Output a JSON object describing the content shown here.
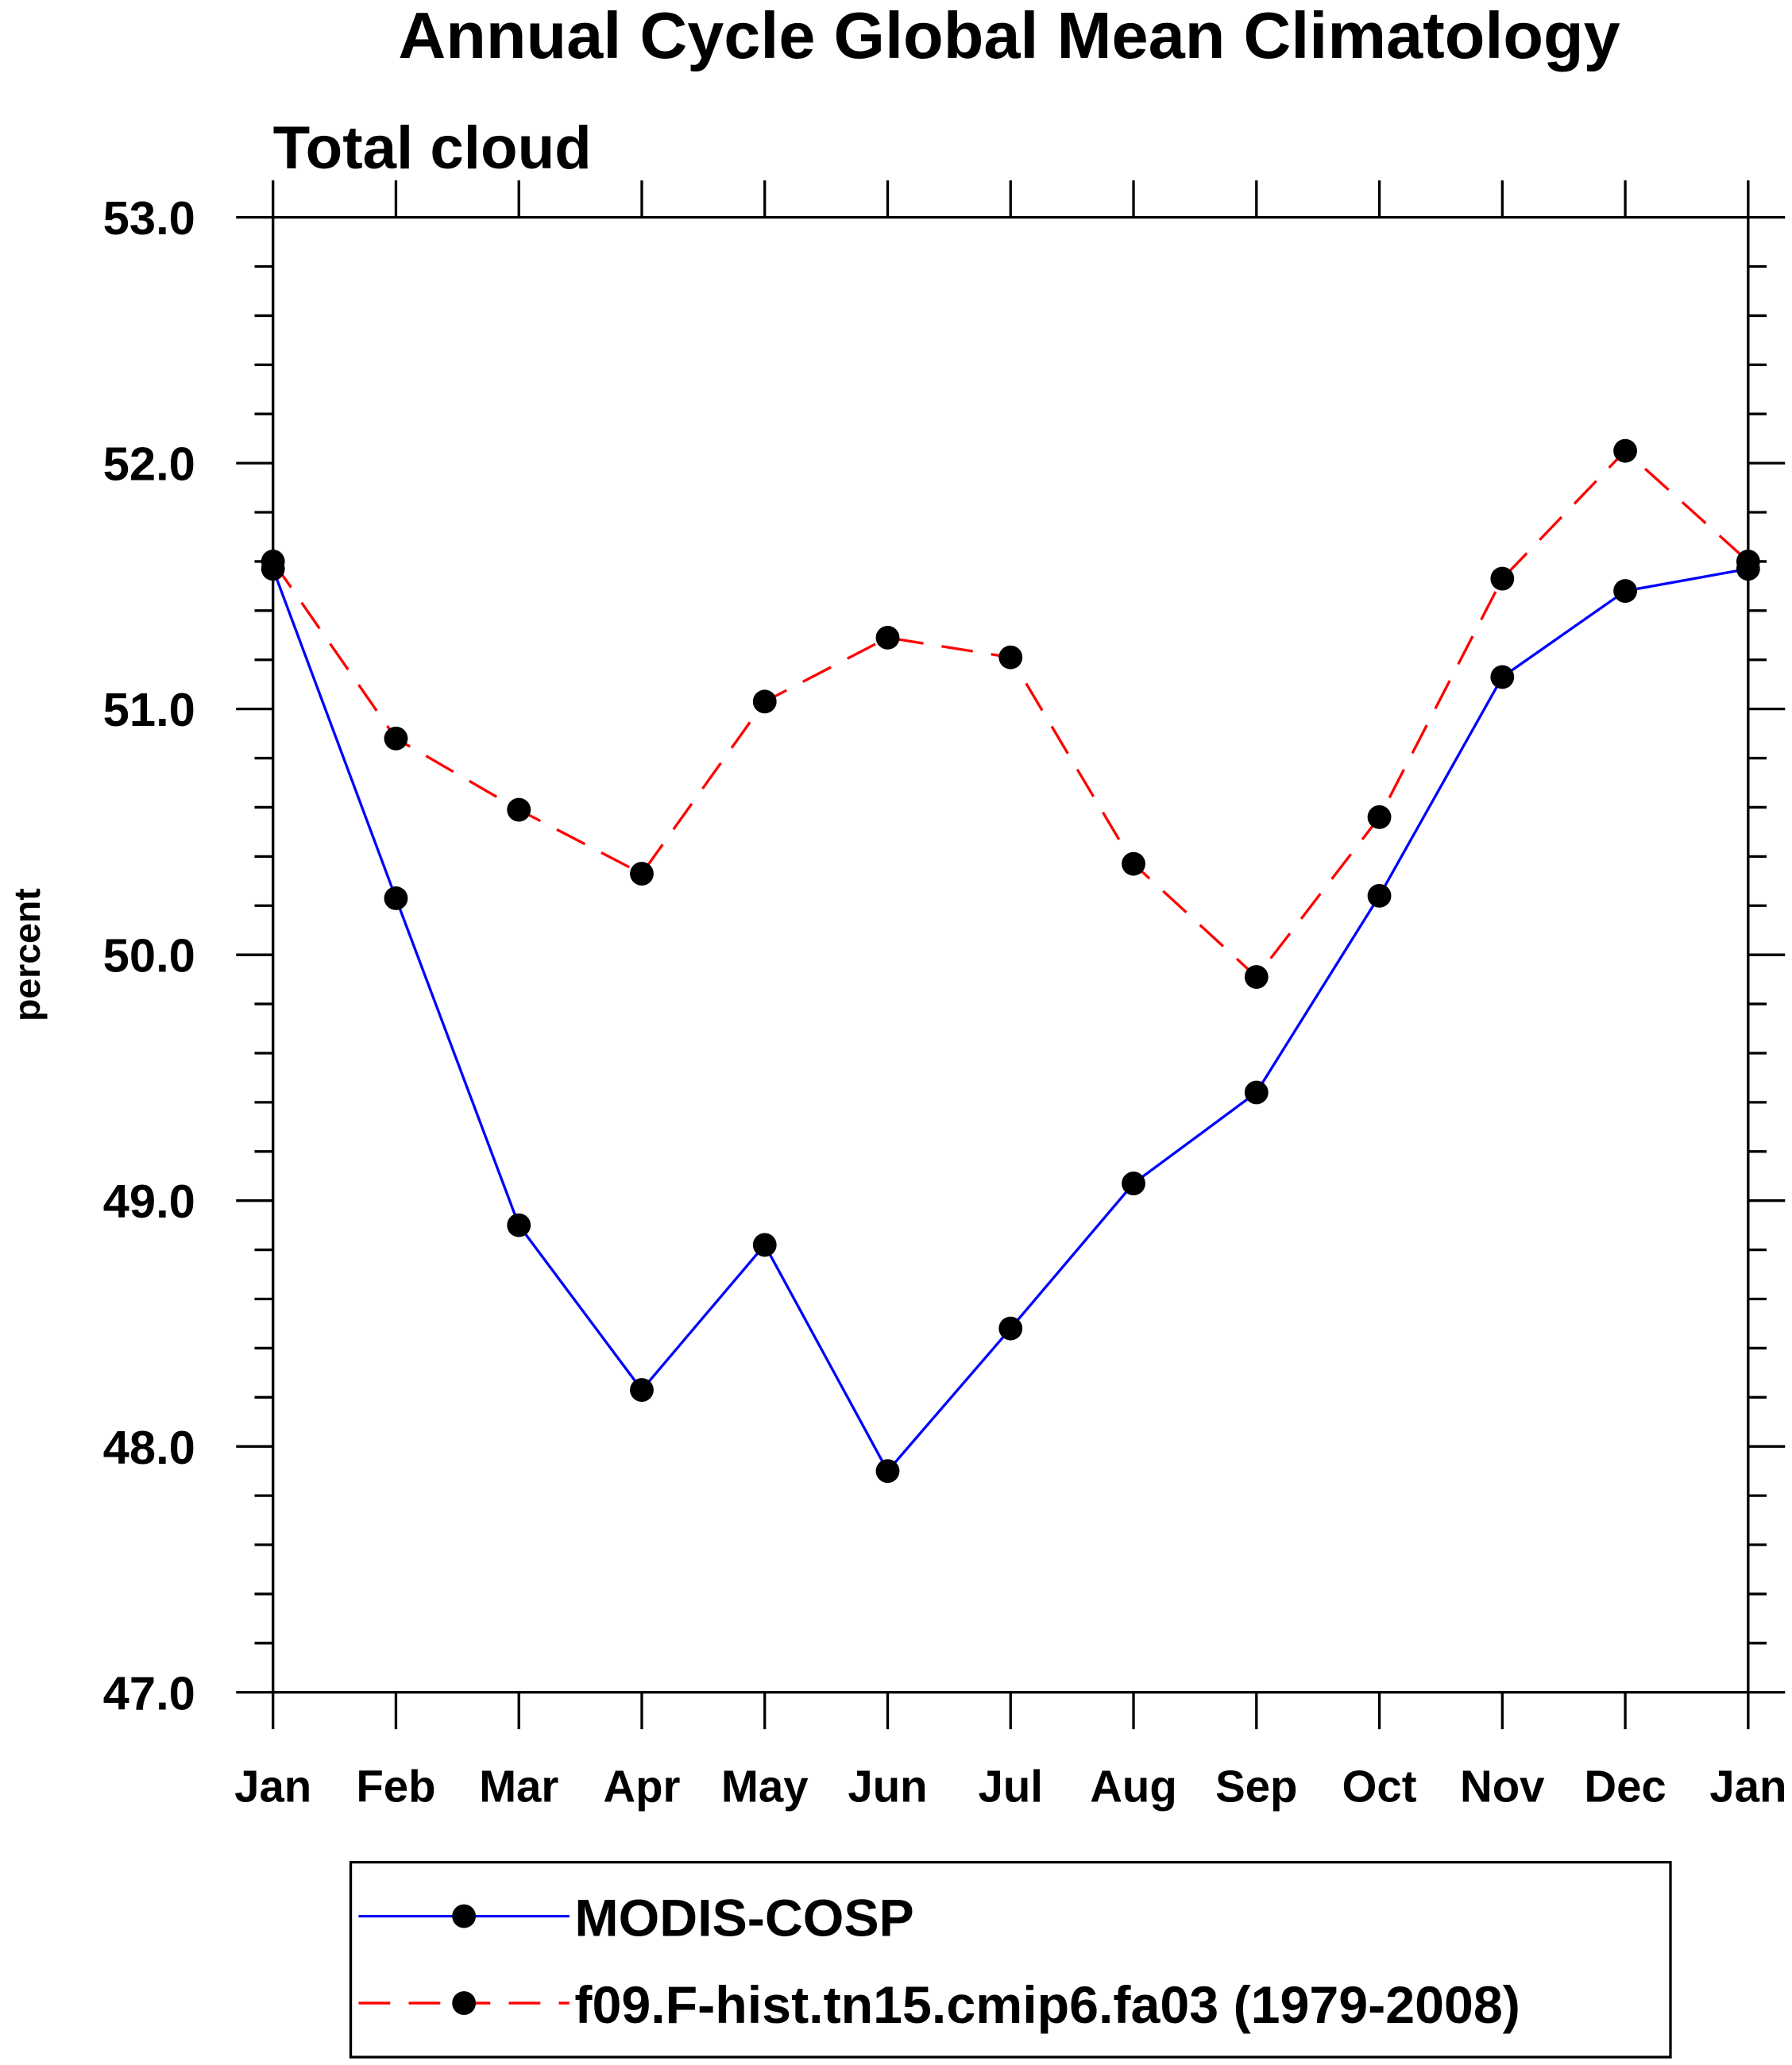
{
  "chart_data": {
    "type": "line",
    "title": "Annual Cycle Global Mean Climatology",
    "subtitle": "Total cloud",
    "xlabel": "",
    "ylabel": "percent",
    "ylim": [
      47.0,
      53.0
    ],
    "yticks": [
      "47.0",
      "48.0",
      "49.0",
      "50.0",
      "51.0",
      "52.0",
      "53.0"
    ],
    "categories": [
      "Jan",
      "Feb",
      "Mar",
      "Apr",
      "May",
      "Jun",
      "Jul",
      "Aug",
      "Sep",
      "Oct",
      "Nov",
      "Dec",
      "Jan"
    ],
    "grid": false,
    "legend_position": "bottom",
    "series": [
      {
        "name": "MODIS-COSP",
        "color": "#0000ff",
        "dash": "solid",
        "values": [
          51.57,
          50.23,
          48.9,
          48.23,
          48.82,
          47.9,
          48.48,
          49.07,
          49.44,
          50.24,
          51.13,
          51.48,
          51.57
        ]
      },
      {
        "name": "f09.F-hist.tn15.cmip6.fa03 (1979-2008)",
        "color": "#ff0000",
        "dash": "dashed",
        "values": [
          51.6,
          50.88,
          50.59,
          50.33,
          51.03,
          51.29,
          51.21,
          50.37,
          49.91,
          50.56,
          51.53,
          52.05,
          51.6
        ]
      }
    ]
  }
}
